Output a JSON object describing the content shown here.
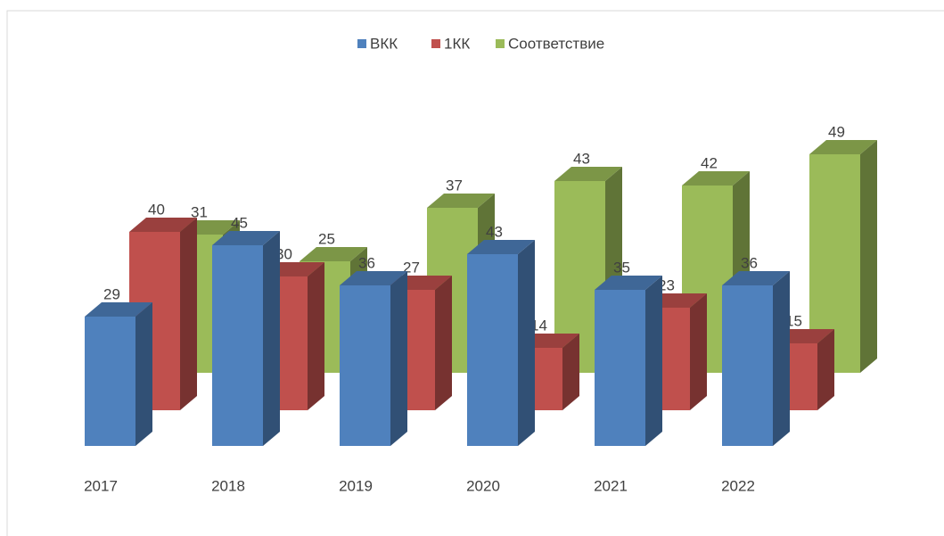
{
  "chart_data": {
    "type": "bar3d",
    "categories": [
      "2017",
      "2018",
      "2019",
      "2020",
      "2021",
      "2022"
    ],
    "series": [
      {
        "name": "ВКК",
        "color": "#4f81bd",
        "values": [
          29,
          45,
          36,
          43,
          35,
          36
        ]
      },
      {
        "name": "1КК",
        "color": "#c0504d",
        "values": [
          40,
          30,
          27,
          14,
          23,
          15
        ]
      },
      {
        "name": "Соответствие",
        "color": "#9bbb59",
        "values": [
          31,
          25,
          37,
          43,
          42,
          49
        ]
      }
    ],
    "legend": "top"
  }
}
